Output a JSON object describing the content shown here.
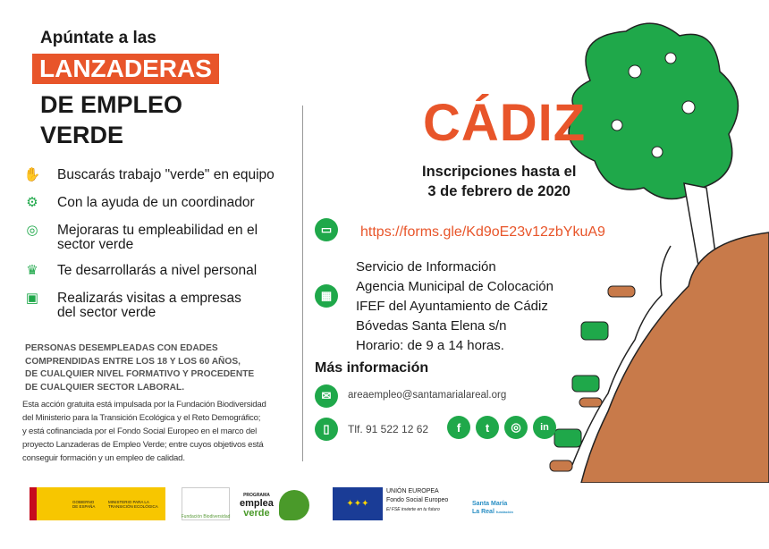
{
  "header": {
    "line1": "Apúntate a las",
    "highlight": "LANZADERAS",
    "line2": "DE EMPLEO",
    "line3": "VERDE"
  },
  "benefits": [
    {
      "icon": "handshake-icon",
      "text": "Buscarás trabajo \"verde\" en equipo"
    },
    {
      "icon": "gear-icon",
      "text": "Con la ayuda de un coordinador"
    },
    {
      "icon": "target-icon",
      "text": "Mejoraras tu empleabilidad en el sector verde"
    },
    {
      "icon": "trophy-icon",
      "text": "Te desarrollarás a nivel personal"
    },
    {
      "icon": "briefcase-icon",
      "text": "Realizarás visitas a empresas del sector verde"
    }
  ],
  "requirements": [
    "PERSONAS DESEMPLEADAS CON EDADES",
    "COMPRENDIDAS ENTRE LOS 18 Y LOS 60 AÑOS,",
    "DE CUALQUIER NIVEL FORMATIVO Y PROCEDENTE",
    "DE CUALQUIER SECTOR LABORAL."
  ],
  "disclaimer": [
    "Esta acción gratuita está impulsada por la Fundación Biodiversidad",
    "del Ministerio para la Transición Ecológica y el Reto Demográfico;",
    "y está cofinanciada por el Fondo Social Europeo en el marco del",
    "proyecto Lanzaderas de Empleo Verde; entre cuyos objetivos está",
    "conseguir formación y un empleo de calidad."
  ],
  "city": "CÁDIZ",
  "deadline": [
    "Inscripciones hasta el",
    "3 de febrero de 2020"
  ],
  "url": "https://forms.gle/Kd9oE23v12zbYkuA9",
  "info": [
    "Servicio de Información",
    "Agencia Municipal de Colocación",
    "IFEF del Ayuntamiento de Cádiz",
    "Bóvedas Santa Elena s/n",
    "Horario: de 9 a 14 horas."
  ],
  "more_info": "Más información",
  "email": "areaempleo@santamarialareal.org",
  "phone": "Tlf. 91 522 12 62",
  "social": [
    "f",
    "t",
    "ig",
    "in"
  ],
  "logos": {
    "gob1": "GOBIERNO DE ESPAÑA",
    "gob2": "MINISTERIO PARA LA TRANSICIÓN ECOLÓGICA",
    "fb": "Fundación Biodiversidad",
    "ev1": "PROGRAMA",
    "ev2": "emplea",
    "ev3": "verde",
    "eu1": "UNIÓN EUROPEA",
    "eu2": "Fondo Social Europeo",
    "eu3": "El FSE invierte en tu futuro",
    "sm1": "Santa María",
    "sm2": "La Real",
    "sm3": "fundación"
  },
  "colors": {
    "orange": "#e8552a",
    "green": "#1fa84a",
    "brown": "#c87a4a"
  }
}
